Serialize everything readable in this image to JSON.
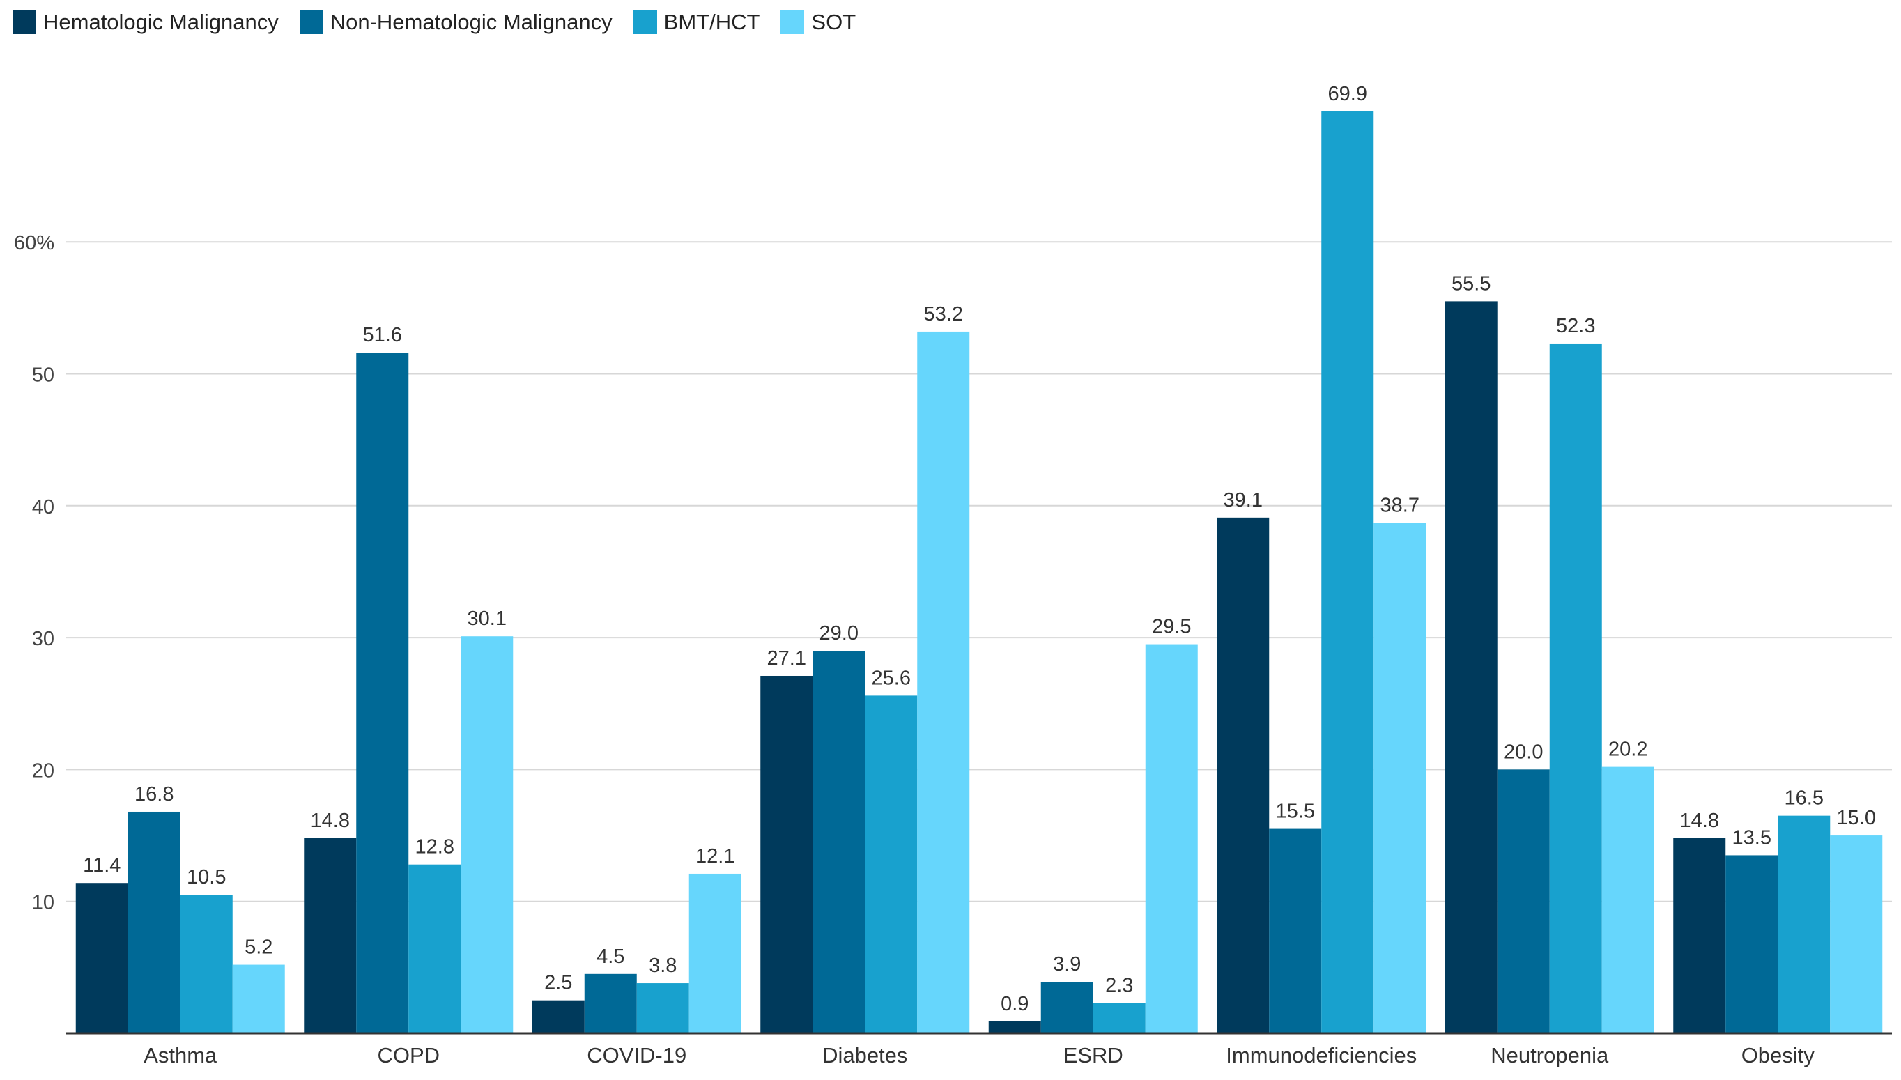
{
  "legend": [
    {
      "name": "Hematologic Malignancy",
      "color": "#003a5c"
    },
    {
      "name": "Non-Hematologic Malignancy",
      "color": "#006996"
    },
    {
      "name": "BMT/HCT",
      "color": "#18a1ce"
    },
    {
      "name": "SOT",
      "color": "#66d6fc"
    }
  ],
  "chart_data": {
    "type": "bar",
    "categories": [
      "Asthma",
      "COPD",
      "COVID-19",
      "Diabetes",
      "ESRD",
      "Immunodeficiencies",
      "Neutropenia",
      "Obesity"
    ],
    "series": [
      {
        "name": "Hematologic Malignancy",
        "color": "#003a5c",
        "values": [
          11.4,
          14.8,
          2.5,
          27.1,
          0.9,
          39.1,
          55.5,
          14.8
        ],
        "labels": [
          "11.4",
          "14.8",
          "2.5",
          "27.1",
          "0.9",
          "39.1",
          "55.5",
          "14.8"
        ]
      },
      {
        "name": "Non-Hematologic Malignancy",
        "color": "#006996",
        "values": [
          16.8,
          51.6,
          4.5,
          29.0,
          3.9,
          15.5,
          20.0,
          13.5
        ],
        "labels": [
          "16.8",
          "51.6",
          "4.5",
          "29.0",
          "3.9",
          "15.5",
          "20.0",
          "13.5"
        ]
      },
      {
        "name": "BMT/HCT",
        "color": "#18a1ce",
        "values": [
          10.5,
          12.8,
          3.8,
          25.6,
          2.3,
          69.9,
          52.3,
          16.5
        ],
        "labels": [
          "10.5",
          "12.8",
          "3.8",
          "25.6",
          "2.3",
          "69.9",
          "52.3",
          "16.5"
        ]
      },
      {
        "name": "SOT",
        "color": "#66d6fc",
        "values": [
          5.2,
          30.1,
          12.1,
          53.2,
          29.5,
          38.7,
          20.2,
          15.0
        ],
        "labels": [
          "5.2",
          "30.1",
          "12.1",
          "53.2",
          "29.5",
          "38.7",
          "20.2",
          "15.0"
        ]
      }
    ],
    "y_ticks": [
      {
        "value": 10,
        "label": "10"
      },
      {
        "value": 20,
        "label": "20"
      },
      {
        "value": 30,
        "label": "30"
      },
      {
        "value": 40,
        "label": "40"
      },
      {
        "value": 50,
        "label": "50"
      },
      {
        "value": 60,
        "label": "60%"
      }
    ],
    "ylim": [
      0,
      72
    ],
    "grid": true,
    "legend_position": "top-left"
  }
}
